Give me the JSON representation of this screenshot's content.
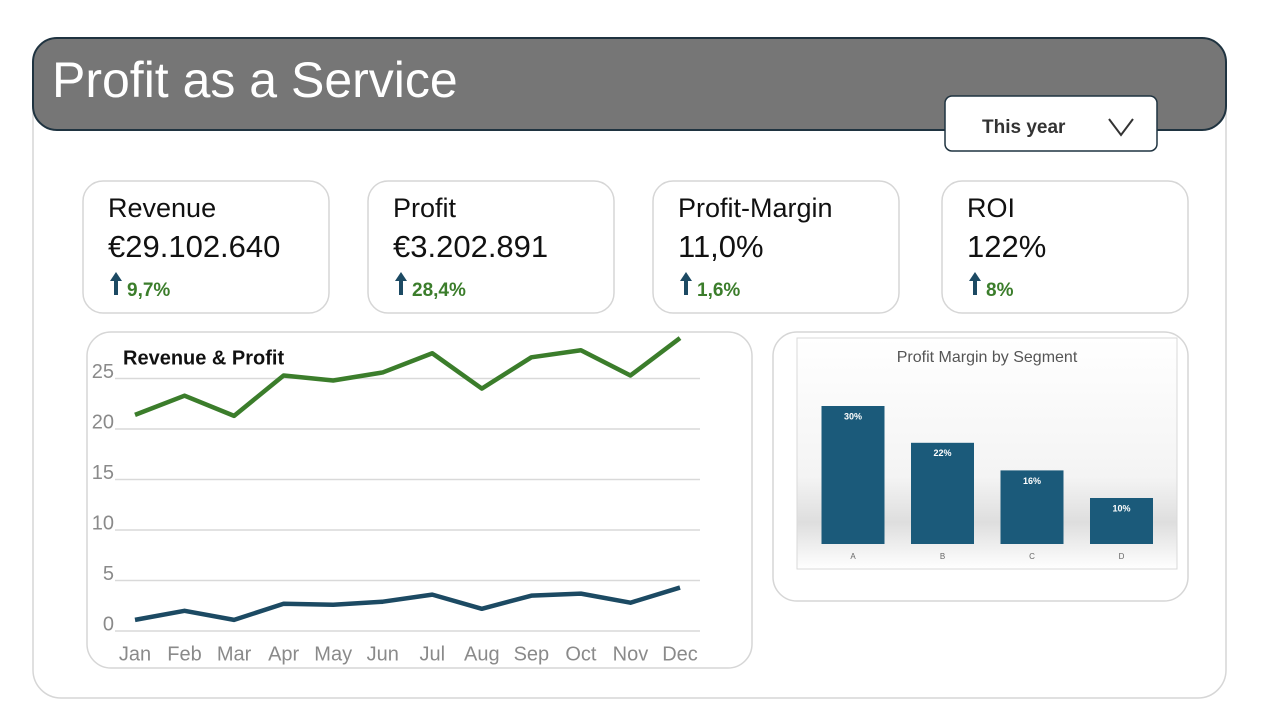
{
  "header": {
    "title": "Profit as a Service"
  },
  "filter": {
    "label": "This year"
  },
  "kpis": [
    {
      "label": "Revenue",
      "value": "€29.102.640",
      "change": "9,7%"
    },
    {
      "label": "Profit",
      "value": "€3.202.891",
      "change": "28,4%"
    },
    {
      "label": "Profit-Margin",
      "value": "11,0%",
      "change": "1,6%"
    },
    {
      "label": "ROI",
      "value": "122%",
      "change": "8%"
    }
  ],
  "chart_data": [
    {
      "type": "line",
      "title": "Revenue & Profit",
      "categories": [
        "Jan",
        "Feb",
        "Mar",
        "Apr",
        "May",
        "Jun",
        "Jul",
        "Aug",
        "Sep",
        "Oct",
        "Nov",
        "Dec"
      ],
      "series": [
        {
          "color": "#3b7d2b",
          "values": [
            21.4,
            23.3,
            21.3,
            25.3,
            24.8,
            25.6,
            27.5,
            24.0,
            27.1,
            27.8,
            25.3,
            29.0
          ]
        },
        {
          "color": "#1c4a63",
          "values": [
            1.1,
            2.0,
            1.1,
            2.7,
            2.6,
            2.9,
            3.6,
            2.2,
            3.5,
            3.7,
            2.8,
            4.3
          ]
        }
      ],
      "ylim": [
        0,
        30
      ],
      "yticks": [
        0,
        5,
        10,
        15,
        20,
        25
      ],
      "grid": true
    },
    {
      "type": "bar",
      "title": "Profit Margin by Segment",
      "categories": [
        "A",
        "B",
        "C",
        "D"
      ],
      "values": [
        30,
        22,
        16,
        10
      ],
      "value_labels": [
        "30%",
        "22%",
        "16%",
        "10%"
      ],
      "color": "#1b5a7a"
    }
  ]
}
